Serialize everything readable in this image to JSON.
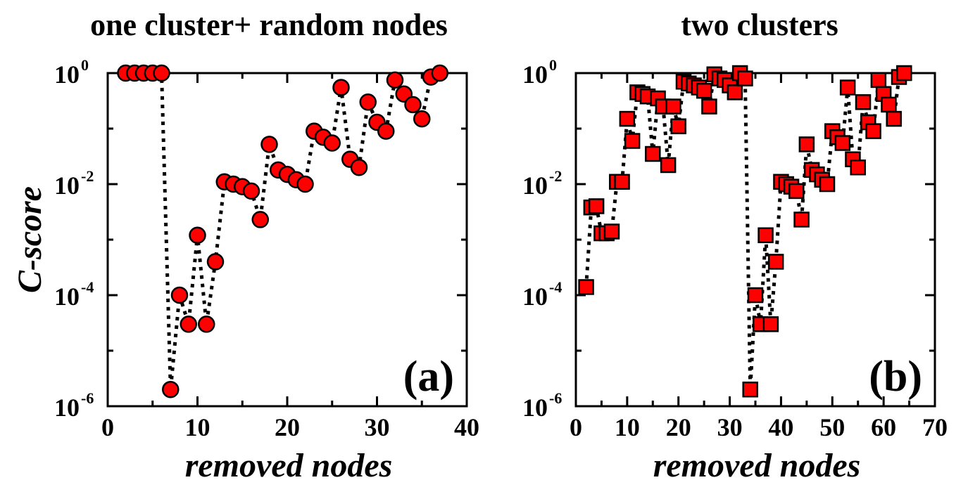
{
  "chart_data": [
    {
      "type": "scatter",
      "panel_label": "(a)",
      "title": "one cluster+ random nodes",
      "xlabel": "removed nodes",
      "ylabel": "C-score",
      "xlim": [
        0,
        40
      ],
      "ylim": [
        1e-06,
        1
      ],
      "yscale": "log",
      "x_ticks": [
        "0",
        "10",
        "20",
        "30",
        "40"
      ],
      "y_ticks": [
        {
          "base": "10",
          "exp": "0"
        },
        {
          "base": "10",
          "exp": "-2"
        },
        {
          "base": "10",
          "exp": "-4"
        },
        {
          "base": "10",
          "exp": "-6"
        }
      ],
      "marker": "circle",
      "marker_color": "#ff0000",
      "line_style": "dotted",
      "series": [
        {
          "x": [
            2,
            3,
            4,
            5,
            6,
            7,
            8,
            9,
            10,
            11,
            12,
            13,
            14,
            15,
            16,
            17,
            18,
            19,
            20,
            21,
            22,
            23,
            24,
            25,
            26,
            27,
            28,
            29,
            30,
            31,
            32,
            33,
            34,
            35,
            36,
            37
          ],
          "y": [
            1,
            1,
            1,
            1,
            1,
            2e-06,
            0.0001,
            3e-05,
            0.0012,
            3e-05,
            0.0004,
            0.011,
            0.01,
            0.009,
            0.0075,
            0.0023,
            0.052,
            0.018,
            0.015,
            0.012,
            0.01,
            0.09,
            0.07,
            0.055,
            0.55,
            0.028,
            0.02,
            0.3,
            0.13,
            0.09,
            0.75,
            0.42,
            0.27,
            0.15,
            0.85,
            1
          ]
        }
      ]
    },
    {
      "type": "scatter",
      "panel_label": "(b)",
      "title": "two clusters",
      "xlabel": "removed nodes",
      "ylabel": "",
      "xlim": [
        0,
        70
      ],
      "ylim": [
        1e-06,
        1
      ],
      "yscale": "log",
      "x_ticks": [
        "0",
        "10",
        "20",
        "30",
        "40",
        "50",
        "60",
        "70"
      ],
      "y_ticks": [
        {
          "base": "10",
          "exp": "0"
        },
        {
          "base": "10",
          "exp": "-2"
        },
        {
          "base": "10",
          "exp": "-4"
        },
        {
          "base": "10",
          "exp": "-6"
        }
      ],
      "marker": "square",
      "marker_color": "#ff0000",
      "line_style": "dotted",
      "series": [
        {
          "x": [
            2,
            3,
            4,
            5,
            6,
            7,
            8,
            9,
            10,
            11,
            12,
            13,
            14,
            15,
            16,
            17,
            18,
            19,
            20,
            21,
            22,
            23,
            24,
            25,
            26,
            27,
            28,
            29,
            30,
            31,
            32,
            33,
            34,
            35,
            36,
            37,
            38,
            39,
            40,
            41,
            42,
            43,
            44,
            45,
            46,
            47,
            48,
            49,
            50,
            51,
            52,
            53,
            54,
            55,
            56,
            57,
            58,
            59,
            60,
            61,
            62,
            63,
            64
          ],
          "y": [
            0.00014,
            0.0038,
            0.004,
            0.0013,
            0.0013,
            0.0014,
            0.011,
            0.011,
            0.15,
            0.06,
            0.45,
            0.42,
            0.38,
            0.035,
            0.35,
            0.25,
            0.022,
            0.25,
            0.11,
            0.7,
            0.65,
            0.6,
            0.55,
            0.48,
            0.25,
            0.95,
            0.8,
            0.75,
            0.6,
            0.45,
            1,
            0.8,
            2e-06,
            0.0001,
            3e-05,
            0.0012,
            3e-05,
            0.0004,
            0.011,
            0.01,
            0.009,
            0.0075,
            0.0023,
            0.052,
            0.018,
            0.015,
            0.012,
            0.01,
            0.09,
            0.07,
            0.055,
            0.55,
            0.028,
            0.02,
            0.3,
            0.13,
            0.09,
            0.75,
            0.42,
            0.27,
            0.15,
            0.85,
            1
          ]
        }
      ]
    }
  ]
}
